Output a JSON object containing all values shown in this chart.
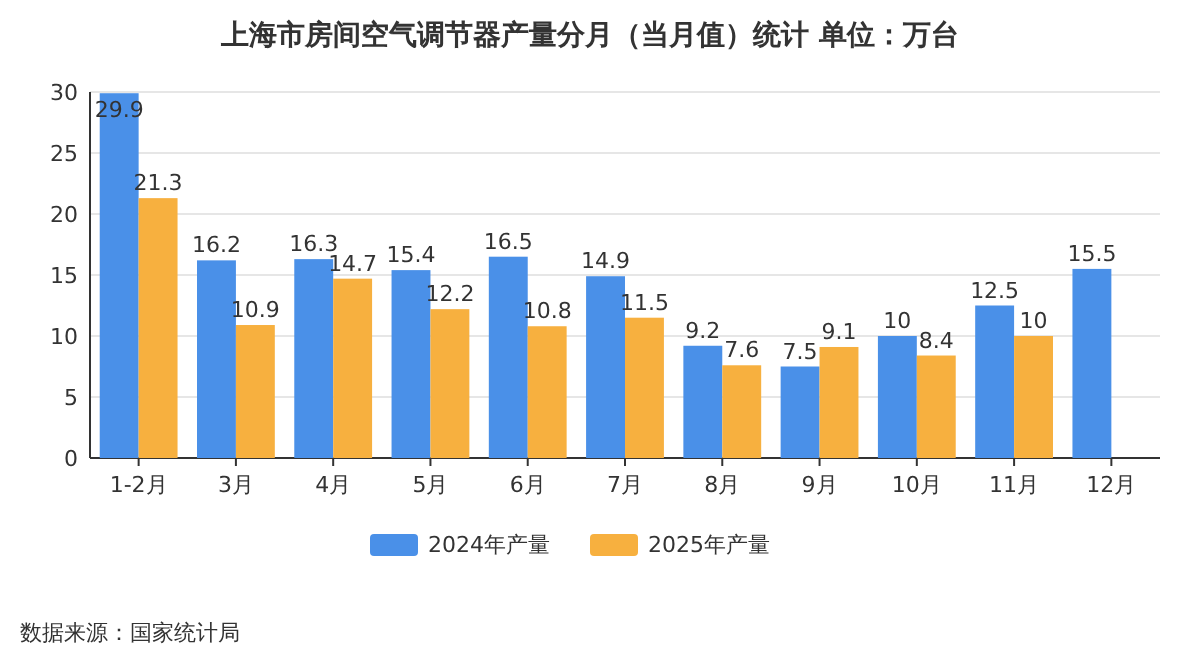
{
  "chart_data": {
    "type": "bar",
    "title": "上海市房间空气调节器产量分月（当月值）统计  单位：万台",
    "categories": [
      "1-2月",
      "3月",
      "4月",
      "5月",
      "6月",
      "7月",
      "8月",
      "9月",
      "10月",
      "11月",
      "12月"
    ],
    "series": [
      {
        "name": "2024年产量",
        "color": "#4a90e8",
        "values": [
          29.9,
          16.2,
          16.3,
          15.4,
          16.5,
          14.9,
          9.2,
          7.5,
          10,
          12.5,
          15.5
        ]
      },
      {
        "name": "2025年产量",
        "color": "#f7b03f",
        "values": [
          21.3,
          10.9,
          14.7,
          12.2,
          10.8,
          11.5,
          7.6,
          9.1,
          8.4,
          10,
          null
        ]
      }
    ],
    "ylim": [
      0,
      30
    ],
    "yticks": [
      0,
      5,
      10,
      15,
      20,
      25,
      30
    ],
    "grid": "y",
    "legend": "bottom",
    "data_labels": true,
    "annotations": [
      "数据来源：国家统计局"
    ]
  }
}
